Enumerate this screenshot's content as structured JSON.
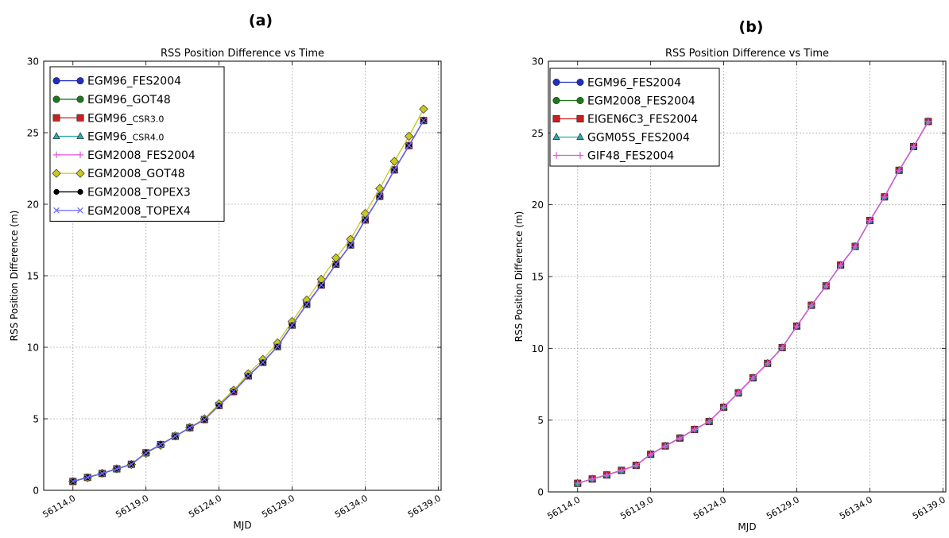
{
  "panels": [
    {
      "panel_label": "(a)",
      "chart_data": {
        "type": "line",
        "title": "RSS Position Difference vs Time",
        "xlabel": "MJD",
        "ylabel": "RSS Position Difference (m)",
        "xlim": [
          56112.0,
          56139.2
        ],
        "ylim": [
          0,
          30
        ],
        "xticks": [
          56114.0,
          56119.0,
          56124.0,
          56129.0,
          56134.0,
          56139.0
        ],
        "xtick_labels": [
          "56114.0",
          "56119.0",
          "56124.0",
          "56129.0",
          "56134.0",
          "56139.0"
        ],
        "yticks": [
          0,
          5,
          10,
          15,
          20,
          25,
          30
        ],
        "ytick_labels": [
          "0",
          "5",
          "10",
          "15",
          "20",
          "25",
          "30"
        ],
        "grid": true,
        "legend_position": "top-left",
        "x": [
          56114,
          56115,
          56116,
          56117,
          56118,
          56119,
          56120,
          56121,
          56122,
          56123,
          56124,
          56125,
          56126,
          56127,
          56128,
          56129,
          56130,
          56131,
          56132,
          56133,
          56134,
          56135,
          56136,
          56137,
          56138
        ],
        "series": [
          {
            "name": "EGM96_FES2004",
            "color": "#1f2fbf",
            "marker": "circle",
            "values": [
              0.62,
              0.9,
              1.18,
              1.5,
              1.82,
              2.62,
              3.2,
              3.78,
              4.38,
              4.95,
              5.93,
              6.9,
              8.0,
              8.95,
              10.05,
              11.55,
              13.0,
              14.35,
              15.8,
              17.15,
              18.9,
              20.55,
              22.4,
              24.1,
              25.85
            ]
          },
          {
            "name": "EGM96_GOT48",
            "color": "#1a7a1a",
            "marker": "circle",
            "values": [
              0.62,
              0.9,
              1.18,
              1.5,
              1.82,
              2.62,
              3.2,
              3.78,
              4.38,
              4.95,
              5.93,
              6.9,
              8.0,
              8.95,
              10.05,
              11.55,
              13.0,
              14.35,
              15.8,
              17.15,
              18.9,
              20.55,
              22.4,
              24.1,
              25.85
            ]
          },
          {
            "name": "EGM96_",
            "name_suffix": "CSR3.0",
            "color": "#cc1f1f",
            "marker": "square",
            "values": [
              0.62,
              0.9,
              1.18,
              1.5,
              1.82,
              2.62,
              3.2,
              3.78,
              4.38,
              4.95,
              5.93,
              6.9,
              8.0,
              8.95,
              10.05,
              11.55,
              13.0,
              14.35,
              15.8,
              17.15,
              18.9,
              20.55,
              22.4,
              24.1,
              25.85
            ]
          },
          {
            "name": "EGM96_",
            "name_suffix": "CSR4.0",
            "color": "#2fa8a8",
            "marker": "triangle",
            "values": [
              0.62,
              0.9,
              1.18,
              1.5,
              1.82,
              2.62,
              3.2,
              3.78,
              4.38,
              4.95,
              5.93,
              6.9,
              8.0,
              8.95,
              10.05,
              11.55,
              13.0,
              14.35,
              15.8,
              17.15,
              18.9,
              20.55,
              22.4,
              24.1,
              25.85
            ]
          },
          {
            "name": "EGM2008_FES2004",
            "color": "#e055e0",
            "marker": "plus",
            "values": [
              0.62,
              0.9,
              1.18,
              1.5,
              1.82,
              2.62,
              3.2,
              3.78,
              4.38,
              4.95,
              5.93,
              6.9,
              8.0,
              8.95,
              10.05,
              11.55,
              13.0,
              14.35,
              15.8,
              17.15,
              18.9,
              20.55,
              22.4,
              24.1,
              25.85
            ]
          },
          {
            "name": "EGM2008_GOT48",
            "color": "#c8c820",
            "marker": "diamond",
            "values": [
              0.62,
              0.88,
              1.2,
              1.5,
              1.8,
              2.58,
              3.15,
              3.8,
              4.4,
              5.0,
              6.05,
              7.0,
              8.15,
              9.15,
              10.3,
              11.8,
              13.3,
              14.75,
              16.25,
              17.55,
              19.35,
              21.1,
              23.0,
              24.75,
              26.65
            ]
          },
          {
            "name": "EGM2008_TOPEX3",
            "color": "#000000",
            "marker": "circle-small",
            "values": [
              0.62,
              0.9,
              1.18,
              1.5,
              1.82,
              2.62,
              3.2,
              3.78,
              4.38,
              4.95,
              5.93,
              6.9,
              8.0,
              8.95,
              10.05,
              11.55,
              13.0,
              14.35,
              15.8,
              17.15,
              18.9,
              20.55,
              22.4,
              24.1,
              25.85
            ]
          },
          {
            "name": "EGM2008_TOPEX4",
            "color": "#6b6bff",
            "marker": "x",
            "values": [
              0.62,
              0.9,
              1.18,
              1.5,
              1.82,
              2.62,
              3.2,
              3.78,
              4.38,
              4.95,
              5.93,
              6.9,
              8.0,
              8.95,
              10.05,
              11.55,
              13.0,
              14.35,
              15.8,
              17.15,
              18.9,
              20.55,
              22.4,
              24.1,
              25.85
            ]
          }
        ]
      }
    },
    {
      "panel_label": "(b)",
      "chart_data": {
        "type": "line",
        "title": "RSS Position Difference vs Time",
        "xlabel": "MJD",
        "ylabel": "RSS Position Difference (m)",
        "xlim": [
          56112.0,
          56139.2
        ],
        "ylim": [
          0,
          30
        ],
        "xticks": [
          56114.0,
          56119.0,
          56124.0,
          56129.0,
          56134.0,
          56139.0
        ],
        "xtick_labels": [
          "56114.0",
          "56119.0",
          "56124.0",
          "56129.0",
          "56134.0",
          "56139.0"
        ],
        "yticks": [
          0,
          5,
          10,
          15,
          20,
          25,
          30
        ],
        "ytick_labels": [
          "0",
          "5",
          "10",
          "15",
          "20",
          "25",
          "30"
        ],
        "grid": true,
        "legend_position": "top-left",
        "x": [
          56114,
          56115,
          56116,
          56117,
          56118,
          56119,
          56120,
          56121,
          56122,
          56123,
          56124,
          56125,
          56126,
          56127,
          56128,
          56129,
          56130,
          56131,
          56132,
          56133,
          56134,
          56135,
          56136,
          56137,
          56138
        ],
        "series": [
          {
            "name": "EGM96_FES2004",
            "color": "#1f2fbf",
            "marker": "circle",
            "values": [
              0.6,
              0.9,
              1.18,
              1.5,
              1.85,
              2.62,
              3.2,
              3.75,
              4.35,
              4.9,
              5.9,
              6.9,
              7.95,
              8.95,
              10.05,
              11.55,
              13.0,
              14.35,
              15.8,
              17.1,
              18.9,
              20.55,
              22.4,
              24.05,
              25.8
            ]
          },
          {
            "name": "EGM2008_FES2004",
            "color": "#1a7a1a",
            "marker": "circle",
            "values": [
              0.6,
              0.9,
              1.18,
              1.5,
              1.85,
              2.62,
              3.2,
              3.75,
              4.35,
              4.9,
              5.9,
              6.9,
              7.95,
              8.95,
              10.05,
              11.55,
              13.0,
              14.35,
              15.8,
              17.1,
              18.9,
              20.55,
              22.4,
              24.05,
              25.8
            ]
          },
          {
            "name": "EIGEN6C3_FES2004",
            "color": "#cc1f1f",
            "marker": "square",
            "values": [
              0.6,
              0.9,
              1.18,
              1.5,
              1.85,
              2.62,
              3.2,
              3.75,
              4.35,
              4.9,
              5.9,
              6.9,
              7.95,
              8.95,
              10.05,
              11.55,
              13.0,
              14.35,
              15.8,
              17.1,
              18.9,
              20.55,
              22.4,
              24.05,
              25.8
            ]
          },
          {
            "name": "GGM05S_FES2004",
            "color": "#2fa8a8",
            "marker": "triangle",
            "values": [
              0.6,
              0.9,
              1.18,
              1.5,
              1.85,
              2.62,
              3.2,
              3.75,
              4.35,
              4.9,
              5.9,
              6.9,
              7.95,
              8.95,
              10.05,
              11.55,
              13.0,
              14.35,
              15.8,
              17.1,
              18.9,
              20.55,
              22.4,
              24.05,
              25.8
            ]
          },
          {
            "name": "GIF48_FES2004",
            "color": "#e055e0",
            "marker": "plus",
            "values": [
              0.6,
              0.9,
              1.18,
              1.5,
              1.85,
              2.62,
              3.2,
              3.75,
              4.35,
              4.9,
              5.9,
              6.9,
              7.95,
              8.95,
              10.05,
              11.55,
              13.0,
              14.35,
              15.8,
              17.1,
              18.9,
              20.55,
              22.4,
              24.05,
              25.8
            ]
          }
        ]
      }
    }
  ]
}
